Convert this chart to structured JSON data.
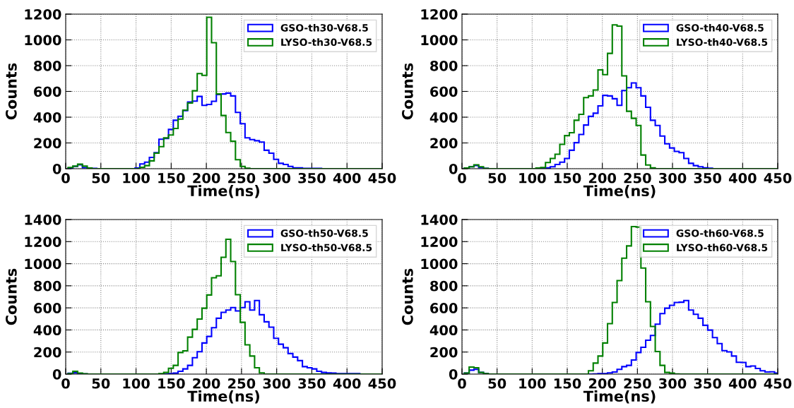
{
  "chart_data": [
    {
      "type": "histogram",
      "xlabel": "Time(ns)",
      "ylabel": "Counts",
      "xlim": [
        0,
        450
      ],
      "ylim": [
        0,
        1200
      ],
      "xticks": [
        0,
        50,
        100,
        150,
        200,
        250,
        300,
        350,
        400,
        450
      ],
      "yticks": [
        0,
        200,
        400,
        600,
        800,
        1000,
        1200
      ],
      "grid": true,
      "legend": "top right",
      "bins": [
        3.4,
        10.2,
        17,
        23.8,
        30.6,
        37.4,
        44.2,
        51,
        57.8,
        64.6,
        71.4,
        78.2,
        85,
        91.8,
        98.6,
        105.4,
        112.2,
        119,
        125.8,
        132.6,
        139.4,
        146.2,
        153,
        159.8,
        166.6,
        173.4,
        180.2,
        187,
        193.8,
        200.6,
        207.4,
        214.2,
        221,
        227.8,
        234.6,
        241.4,
        248.2,
        255,
        261.8,
        268.6,
        275.4,
        282.2,
        289,
        295.8,
        302.6,
        309.4,
        316.2,
        323,
        329.8,
        336.6,
        343.4,
        350.2,
        357,
        363.8,
        370.6,
        377.4,
        384.2,
        391,
        397.8,
        404.6,
        411.4,
        418.2,
        425,
        431.8,
        438.6,
        445.4,
        450
      ],
      "series": [
        {
          "name": "GSO-th30-V68.5",
          "color": "#0000ff",
          "values": [
            5,
            18,
            30,
            8,
            4,
            3,
            0,
            0,
            0,
            0,
            0,
            0,
            0,
            0,
            5,
            37,
            51,
            88,
            125,
            229,
            235,
            305,
            376,
            407,
            451,
            517,
            525,
            561,
            492,
            499,
            523,
            576,
            580,
            587,
            565,
            437,
            349,
            240,
            226,
            217,
            207,
            143,
            121,
            73,
            42,
            33,
            18,
            6,
            6,
            2,
            2,
            2,
            2,
            0,
            0,
            0,
            0,
            0,
            0,
            0,
            0,
            0,
            0,
            0,
            0,
            0
          ]
        },
        {
          "name": "LYSO-th30-V68.5",
          "color": "#008000",
          "values": [
            10,
            20,
            35,
            20,
            5,
            0,
            0,
            0,
            0,
            0,
            0,
            0,
            0,
            0,
            0,
            11,
            24,
            61,
            121,
            171,
            239,
            262,
            312,
            385,
            455,
            510,
            605,
            738,
            725,
            1175,
            978,
            580,
            413,
            281,
            213,
            70,
            18,
            4,
            0,
            0,
            0,
            0,
            0,
            0,
            0,
            0,
            0,
            0,
            0,
            0,
            0,
            0,
            0,
            0,
            0,
            0,
            0,
            0,
            0,
            0,
            0,
            0,
            0,
            0,
            0,
            0
          ]
        }
      ]
    },
    {
      "type": "histogram",
      "xlabel": "Time(ns)",
      "ylabel": "Counts",
      "xlim": [
        0,
        450
      ],
      "ylim": [
        0,
        1200
      ],
      "xticks": [
        0,
        50,
        100,
        150,
        200,
        250,
        300,
        350,
        400,
        450
      ],
      "yticks": [
        0,
        200,
        400,
        600,
        800,
        1000,
        1200
      ],
      "grid": true,
      "legend": "top right",
      "bins": [
        3.4,
        10.2,
        17,
        23.8,
        30.6,
        37.4,
        44.2,
        51,
        57.8,
        64.6,
        71.4,
        78.2,
        85,
        91.8,
        98.6,
        105.4,
        112.2,
        119,
        125.8,
        132.6,
        139.4,
        146.2,
        153,
        159.8,
        166.6,
        173.4,
        180.2,
        187,
        193.8,
        200.6,
        207.4,
        214.2,
        221,
        227.8,
        234.6,
        241.4,
        248.2,
        255,
        261.8,
        268.6,
        275.4,
        282.2,
        289,
        295.8,
        302.6,
        309.4,
        316.2,
        323,
        329.8,
        336.6,
        343.4,
        350.2,
        357,
        363.8,
        370.6,
        377.4,
        384.2,
        391,
        397.8,
        404.6,
        411.4,
        418.2,
        425,
        431.8,
        438.6,
        445.4,
        450
      ],
      "series": [
        {
          "name": "GSO-th40-V68.5",
          "color": "#0000ff",
          "values": [
            5,
            15,
            25,
            8,
            3,
            0,
            0,
            0,
            0,
            0,
            0,
            0,
            0,
            0,
            0,
            0,
            0,
            6,
            15,
            33,
            51,
            79,
            143,
            202,
            266,
            339,
            406,
            431,
            488,
            569,
            565,
            543,
            492,
            607,
            629,
            666,
            629,
            565,
            477,
            376,
            336,
            253,
            193,
            161,
            134,
            125,
            79,
            42,
            24,
            15,
            6,
            4,
            0,
            0,
            0,
            0,
            0,
            0,
            0,
            0,
            0,
            0,
            0,
            0,
            0,
            0
          ]
        },
        {
          "name": "LYSO-th40-V68.5",
          "color": "#008000",
          "values": [
            5,
            15,
            30,
            15,
            3,
            0,
            0,
            0,
            0,
            0,
            0,
            0,
            0,
            0,
            0,
            5,
            9,
            48,
            79,
            112,
            189,
            257,
            279,
            376,
            422,
            552,
            565,
            611,
            767,
            730,
            895,
            1116,
            1107,
            721,
            446,
            391,
            336,
            106,
            29,
            6,
            0,
            0,
            0,
            0,
            0,
            0,
            0,
            0,
            0,
            0,
            0,
            0,
            0,
            0,
            0,
            0,
            0,
            0,
            0,
            0,
            0,
            0,
            0,
            0,
            0,
            0
          ]
        }
      ]
    },
    {
      "type": "histogram",
      "xlabel": "Time(ns)",
      "ylabel": "Counts",
      "xlim": [
        0,
        450
      ],
      "ylim": [
        0,
        1400
      ],
      "xticks": [
        0,
        50,
        100,
        150,
        200,
        250,
        300,
        350,
        400,
        450
      ],
      "yticks": [
        0,
        200,
        400,
        600,
        800,
        1000,
        1200,
        1400
      ],
      "grid": true,
      "legend": "top right",
      "bins": [
        3.4,
        10.2,
        17,
        23.8,
        30.6,
        37.4,
        44.2,
        51,
        57.8,
        64.6,
        71.4,
        78.2,
        85,
        91.8,
        98.6,
        105.4,
        112.2,
        119,
        125.8,
        132.6,
        139.4,
        146.2,
        153,
        159.8,
        166.6,
        173.4,
        180.2,
        187,
        193.8,
        200.6,
        207.4,
        214.2,
        221,
        227.8,
        234.6,
        241.4,
        248.2,
        255,
        261.8,
        268.6,
        275.4,
        282.2,
        289,
        295.8,
        302.6,
        309.4,
        316.2,
        323,
        329.8,
        336.6,
        343.4,
        350.2,
        357,
        363.8,
        370.6,
        377.4,
        384.2,
        391,
        397.8,
        404.6,
        411.4,
        418.2,
        425,
        431.8,
        438.6,
        445.4,
        450
      ],
      "series": [
        {
          "name": "GSO-th50-V68.5",
          "color": "#0000ff",
          "values": [
            8,
            12,
            5,
            2,
            0,
            0,
            0,
            0,
            0,
            0,
            0,
            0,
            0,
            0,
            0,
            0,
            0,
            0,
            0,
            0,
            0,
            4,
            9,
            26,
            47,
            79,
            149,
            203,
            282,
            341,
            420,
            506,
            559,
            580,
            602,
            572,
            602,
            655,
            580,
            666,
            538,
            474,
            425,
            324,
            271,
            239,
            186,
            154,
            122,
            68,
            58,
            47,
            26,
            15,
            11,
            9,
            4,
            4,
            4,
            4,
            4,
            0,
            0,
            0,
            0,
            0
          ]
        },
        {
          "name": "LYSO-th50-V68.5",
          "color": "#008000",
          "values": [
            5,
            25,
            10,
            3,
            0,
            0,
            0,
            0,
            0,
            0,
            0,
            0,
            0,
            0,
            0,
            0,
            0,
            0,
            0,
            4,
            15,
            53,
            79,
            196,
            211,
            335,
            405,
            499,
            597,
            717,
            873,
            890,
            1058,
            1221,
            1020,
            719,
            469,
            265,
            164,
            58,
            11,
            0,
            0,
            0,
            0,
            0,
            0,
            0,
            0,
            0,
            0,
            0,
            0,
            0,
            0,
            0,
            0,
            0,
            0,
            0,
            0,
            0,
            0,
            0,
            0,
            0
          ]
        }
      ]
    },
    {
      "type": "histogram",
      "xlabel": "Time(ns)",
      "ylabel": "Counts",
      "xlim": [
        0,
        450
      ],
      "ylim": [
        0,
        1400
      ],
      "xticks": [
        0,
        50,
        100,
        150,
        200,
        250,
        300,
        350,
        400,
        450
      ],
      "yticks": [
        0,
        200,
        400,
        600,
        800,
        1000,
        1200,
        1400
      ],
      "grid": true,
      "legend": "top right",
      "bins": [
        3.4,
        10.2,
        17,
        23.8,
        30.6,
        37.4,
        44.2,
        51,
        57.8,
        64.6,
        71.4,
        78.2,
        85,
        91.8,
        98.6,
        105.4,
        112.2,
        119,
        125.8,
        132.6,
        139.4,
        146.2,
        153,
        159.8,
        166.6,
        173.4,
        180.2,
        187,
        193.8,
        200.6,
        207.4,
        214.2,
        221,
        227.8,
        234.6,
        241.4,
        248.2,
        255,
        261.8,
        268.6,
        275.4,
        282.2,
        289,
        295.8,
        302.6,
        309.4,
        316.2,
        323,
        329.8,
        336.6,
        343.4,
        350.2,
        357,
        363.8,
        370.6,
        377.4,
        384.2,
        391,
        397.8,
        404.6,
        411.4,
        418.2,
        425,
        431.8,
        438.6,
        445.4,
        450
      ],
      "series": [
        {
          "name": "GSO-th60-V68.5",
          "color": "#0000ff",
          "values": [
            10,
            36,
            43,
            15,
            4,
            0,
            0,
            0,
            0,
            0,
            0,
            0,
            0,
            0,
            0,
            0,
            0,
            0,
            0,
            0,
            0,
            0,
            0,
            0,
            0,
            0,
            0,
            2,
            4,
            4,
            11,
            19,
            43,
            68,
            79,
            128,
            196,
            243,
            307,
            350,
            452,
            548,
            597,
            623,
            649,
            651,
            666,
            580,
            542,
            506,
            442,
            399,
            331,
            277,
            213,
            201,
            164,
            107,
            105,
            68,
            73,
            51,
            30,
            19,
            21,
            9
          ]
        },
        {
          "name": "LYSO-th60-V68.5",
          "color": "#008000",
          "values": [
            10,
            64,
            58,
            15,
            4,
            0,
            0,
            0,
            0,
            0,
            0,
            0,
            0,
            0,
            0,
            0,
            0,
            0,
            0,
            0,
            0,
            0,
            0,
            0,
            0,
            0,
            30,
            100,
            164,
            282,
            457,
            649,
            847,
            1050,
            1161,
            1336,
            1331,
            960,
            655,
            431,
            205,
            79,
            15,
            9,
            2,
            0,
            0,
            0,
            0,
            0,
            0,
            0,
            0,
            0,
            0,
            0,
            0,
            0,
            0,
            0,
            0,
            0,
            0,
            0,
            0,
            0
          ]
        }
      ]
    }
  ]
}
